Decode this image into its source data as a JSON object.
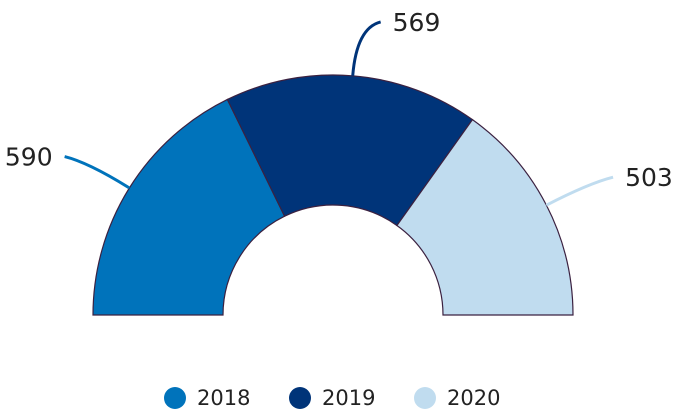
{
  "chart_data": {
    "type": "pie",
    "categories": [
      "2018",
      "2019",
      "2020"
    ],
    "values": [
      590,
      569,
      503
    ],
    "colors": [
      "#0073bb",
      "#003479",
      "#c0dcef"
    ]
  }
}
